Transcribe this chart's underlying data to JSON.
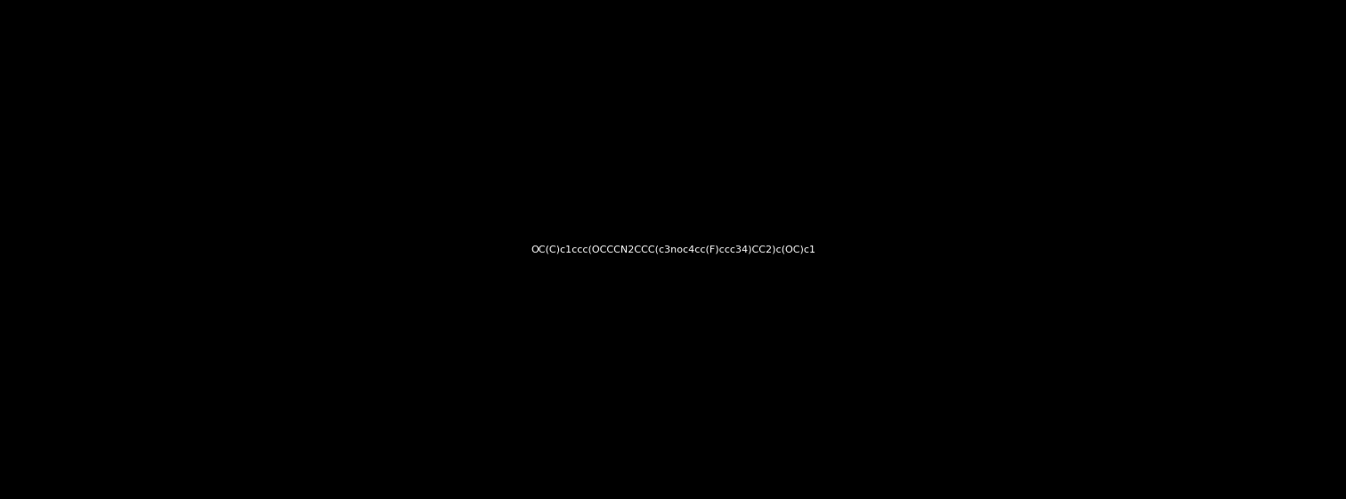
{
  "smiles": "OC(C)c1ccc(OCCCN2CCC(c3noc4cc(F)ccc34)CC2)c(OC)c1",
  "title": "",
  "bg_color": "#000000",
  "atom_colors": {
    "F": "#00CC00",
    "N": "#0000FF",
    "O": "#FF0000",
    "C": "#000000",
    "default": "#000000"
  },
  "figsize": [
    15.12,
    5.61
  ],
  "dpi": 100
}
